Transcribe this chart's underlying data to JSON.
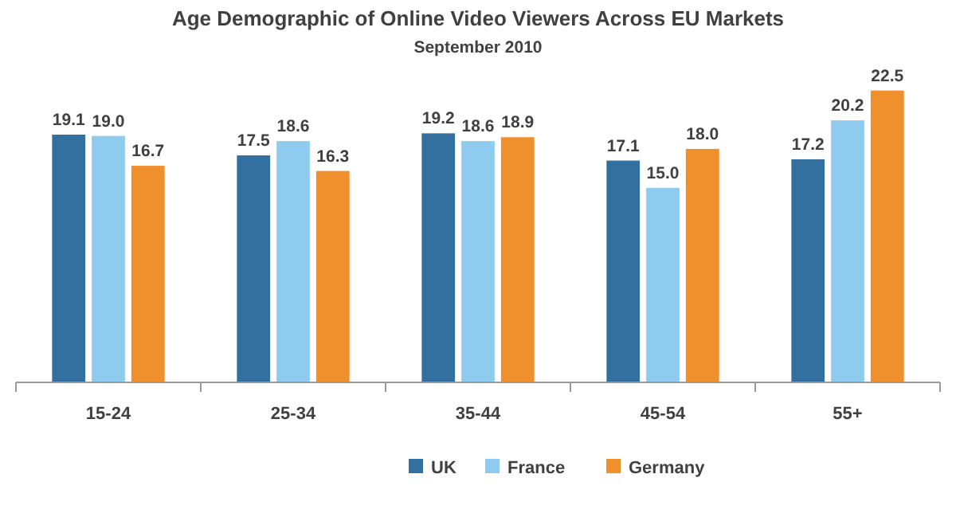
{
  "chart_data": {
    "type": "bar",
    "title": "Age Demographic of Online Video Viewers Across EU Markets",
    "subtitle": "September 2010",
    "categories": [
      "15-24",
      "25-34",
      "35-44",
      "45-54",
      "55+"
    ],
    "series": [
      {
        "name": "UK",
        "color": "#336f9f",
        "values": [
          19.1,
          17.5,
          19.2,
          17.1,
          17.2
        ],
        "value_labels": [
          "19.1",
          "17.5",
          "19.2",
          "17.1",
          "17.2"
        ]
      },
      {
        "name": "France",
        "color": "#8ecbef",
        "values": [
          19.0,
          18.6,
          18.6,
          15.0,
          20.2
        ],
        "value_labels": [
          "19.0",
          "18.6",
          "18.6",
          "15.0",
          "20.2"
        ]
      },
      {
        "name": "Germany",
        "color": "#f0902c",
        "values": [
          16.7,
          16.3,
          18.9,
          18.0,
          22.5
        ],
        "value_labels": [
          "16.7",
          "16.3",
          "18.9",
          "18.0",
          "22.5"
        ]
      }
    ],
    "legend": "bottom"
  }
}
